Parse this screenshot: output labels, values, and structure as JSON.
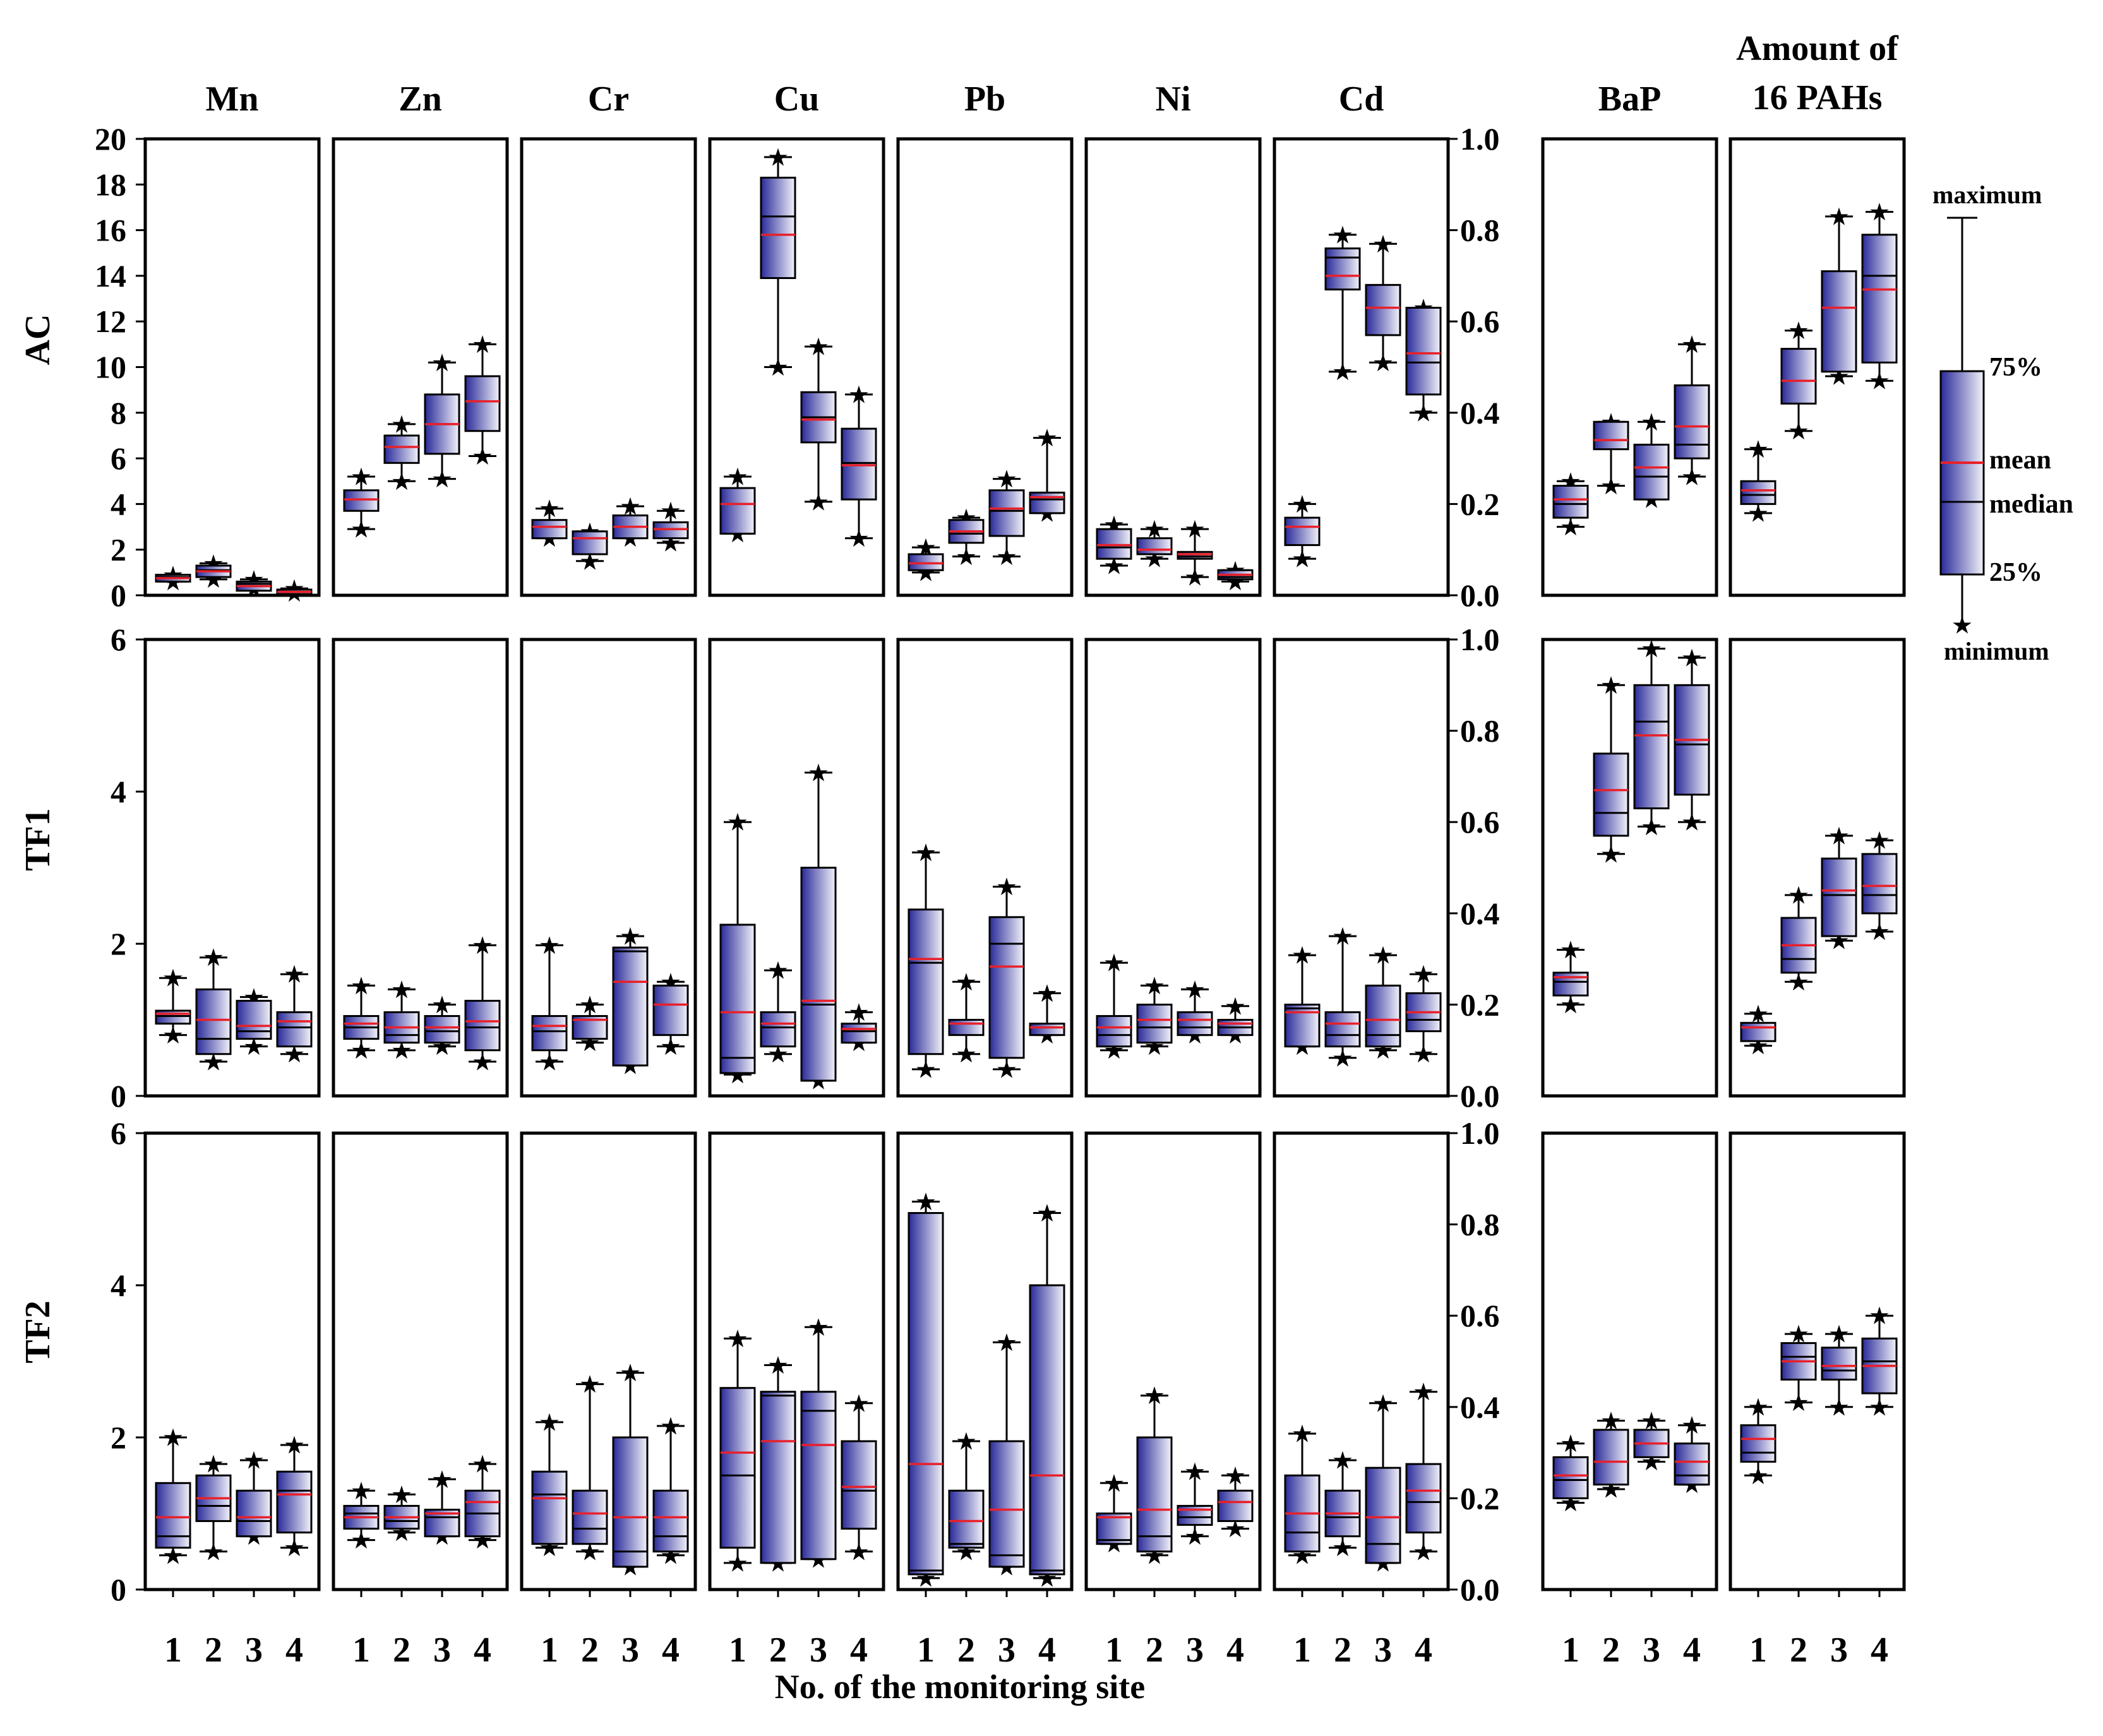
{
  "figure": {
    "x_title": "No. of the monitoring site",
    "row_labels": [
      "AC",
      "TF1",
      "TF2"
    ],
    "column_titles": [
      "Mn",
      "Zn",
      "Cr",
      "Cu",
      "Pb",
      "Ni",
      "Cd",
      "BaP",
      "Amount of\n16 PAHs"
    ],
    "left_ticks": [
      [
        "20",
        "18",
        "16",
        "14",
        "12",
        "10",
        "8",
        "6",
        "4",
        "2",
        "0"
      ],
      [
        "6",
        "4",
        "2",
        "0"
      ],
      [
        "6",
        "4",
        "2",
        "0"
      ]
    ],
    "right_ticks": [
      "1.0",
      "0.8",
      "0.6",
      "0.4",
      "0.2",
      "0.0"
    ],
    "site_labels": [
      "1",
      "2",
      "3",
      "4"
    ],
    "legend": {
      "maximum": "maximum",
      "p75": "75%",
      "mean": "mean",
      "median": "median",
      "p25": "25%",
      "minimum": "minimum"
    },
    "colors": {
      "box_dark": "#2a2a9a",
      "box_light": "#f2f2fa",
      "mean_line": "#e8202a",
      "outline": "#000000"
    }
  },
  "chart_data": {
    "type": "boxplot",
    "stat_order": [
      "min",
      "q25",
      "median",
      "q75",
      "max",
      "mean"
    ],
    "x_categories": [
      "1",
      "2",
      "3",
      "4"
    ],
    "panels": [
      {
        "row": "AC",
        "variable": "Mn",
        "ylim": [
          0,
          20
        ],
        "boxes": [
          [
            0.6,
            0.6,
            0.8,
            0.9,
            0.9,
            0.75
          ],
          [
            0.7,
            0.8,
            1.1,
            1.3,
            1.4,
            1.05
          ],
          [
            0.3,
            0.2,
            0.5,
            0.6,
            0.7,
            0.4
          ],
          [
            0.1,
            0.05,
            0.15,
            0.25,
            0.3,
            0.15
          ]
        ]
      },
      {
        "row": "AC",
        "variable": "Zn",
        "ylim": [
          0,
          20
        ],
        "boxes": [
          [
            2.9,
            3.7,
            4.2,
            4.6,
            5.2,
            4.2
          ],
          [
            5.0,
            5.8,
            6.5,
            7.0,
            7.5,
            6.5
          ],
          [
            5.1,
            6.2,
            7.5,
            8.8,
            10.2,
            7.5
          ],
          [
            6.1,
            7.2,
            8.5,
            9.6,
            11.0,
            8.5
          ]
        ]
      },
      {
        "row": "AC",
        "variable": "Cr",
        "ylim": [
          0,
          20
        ],
        "boxes": [
          [
            2.5,
            2.5,
            3.0,
            3.3,
            3.8,
            3.0
          ],
          [
            1.5,
            1.8,
            2.5,
            2.8,
            2.8,
            2.5
          ],
          [
            2.5,
            2.5,
            3.0,
            3.5,
            3.9,
            3.0
          ],
          [
            2.3,
            2.5,
            2.9,
            3.2,
            3.7,
            2.9
          ]
        ]
      },
      {
        "row": "AC",
        "variable": "Cu",
        "ylim": [
          0,
          20
        ],
        "boxes": [
          [
            2.7,
            2.7,
            4.0,
            4.7,
            5.2,
            4.0
          ],
          [
            10.0,
            13.9,
            16.6,
            18.3,
            19.2,
            15.8
          ],
          [
            4.1,
            6.7,
            7.8,
            8.9,
            10.9,
            7.7
          ],
          [
            2.5,
            4.2,
            5.8,
            7.3,
            8.8,
            5.7
          ]
        ]
      },
      {
        "row": "AC",
        "variable": "Pb",
        "ylim": [
          0,
          20
        ],
        "boxes": [
          [
            1.0,
            1.1,
            1.4,
            1.8,
            2.1,
            1.4
          ],
          [
            1.7,
            2.3,
            2.7,
            3.3,
            3.4,
            2.8
          ],
          [
            1.7,
            2.6,
            3.7,
            4.6,
            5.1,
            3.8
          ],
          [
            3.6,
            3.6,
            4.2,
            4.5,
            6.9,
            4.3
          ]
        ]
      },
      {
        "row": "AC",
        "variable": "Ni",
        "ylim": [
          0,
          20
        ],
        "boxes": [
          [
            1.3,
            1.6,
            2.1,
            2.9,
            3.1,
            2.2
          ],
          [
            1.6,
            1.8,
            2.0,
            2.5,
            2.9,
            2.0
          ],
          [
            0.8,
            1.6,
            1.7,
            1.9,
            2.9,
            1.8
          ],
          [
            0.6,
            0.7,
            0.8,
            1.1,
            1.1,
            0.9
          ]
        ]
      },
      {
        "row": "AC",
        "variable": "Cd",
        "ylim": [
          0,
          1
        ],
        "boxes": [
          [
            0.08,
            0.11,
            0.15,
            0.17,
            0.2,
            0.15
          ],
          [
            0.49,
            0.67,
            0.74,
            0.76,
            0.79,
            0.7
          ],
          [
            0.51,
            0.57,
            0.63,
            0.68,
            0.77,
            0.63
          ],
          [
            0.4,
            0.44,
            0.51,
            0.63,
            0.63,
            0.53
          ]
        ]
      },
      {
        "row": "AC",
        "variable": "BaP",
        "ylim": [
          0,
          1
        ],
        "boxes": [
          [
            0.15,
            0.17,
            0.2,
            0.24,
            0.25,
            0.21
          ],
          [
            0.24,
            0.32,
            0.34,
            0.38,
            0.38,
            0.34
          ],
          [
            0.21,
            0.21,
            0.26,
            0.33,
            0.38,
            0.28
          ],
          [
            0.26,
            0.3,
            0.33,
            0.46,
            0.55,
            0.37
          ]
        ]
      },
      {
        "row": "AC",
        "variable": "Amount of 16 PAHs",
        "ylim": [
          0,
          1
        ],
        "boxes": [
          [
            0.18,
            0.2,
            0.22,
            0.25,
            0.32,
            0.23
          ],
          [
            0.36,
            0.42,
            0.47,
            0.54,
            0.58,
            0.47
          ],
          [
            0.48,
            0.49,
            0.63,
            0.71,
            0.83,
            0.63
          ],
          [
            0.47,
            0.51,
            0.7,
            0.79,
            0.84,
            0.67
          ]
        ]
      },
      {
        "row": "TF1",
        "variable": "Mn",
        "ylim": [
          0,
          6
        ],
        "boxes": [
          [
            0.8,
            0.95,
            1.05,
            1.12,
            1.55,
            1.08
          ],
          [
            0.45,
            0.55,
            0.75,
            1.4,
            1.82,
            1.0
          ],
          [
            0.65,
            0.75,
            0.85,
            1.25,
            1.3,
            0.92
          ],
          [
            0.55,
            0.65,
            0.9,
            1.1,
            1.6,
            0.98
          ]
        ]
      },
      {
        "row": "TF1",
        "variable": "Zn",
        "ylim": [
          0,
          6
        ],
        "boxes": [
          [
            0.6,
            0.75,
            0.9,
            1.05,
            1.45,
            0.95
          ],
          [
            0.6,
            0.7,
            0.8,
            1.1,
            1.4,
            0.9
          ],
          [
            0.65,
            0.7,
            0.85,
            1.05,
            1.2,
            0.9
          ],
          [
            0.45,
            0.6,
            0.9,
            1.25,
            1.98,
            0.98
          ]
        ]
      },
      {
        "row": "TF1",
        "variable": "Cr",
        "ylim": [
          0,
          6
        ],
        "boxes": [
          [
            0.45,
            0.6,
            0.85,
            1.05,
            1.98,
            0.92
          ],
          [
            0.7,
            0.75,
            1.0,
            1.05,
            1.2,
            1.0
          ],
          [
            0.4,
            0.4,
            1.9,
            1.95,
            2.1,
            1.5
          ],
          [
            0.65,
            0.8,
            1.2,
            1.45,
            1.5,
            1.2
          ]
        ]
      },
      {
        "row": "TF1",
        "variable": "Cu",
        "ylim": [
          0,
          6
        ],
        "boxes": [
          [
            0.28,
            0.3,
            0.5,
            2.25,
            3.6,
            1.1
          ],
          [
            0.55,
            0.65,
            0.9,
            1.1,
            1.65,
            0.95
          ],
          [
            0.2,
            0.2,
            1.2,
            3.0,
            4.25,
            1.25
          ],
          [
            0.7,
            0.7,
            0.85,
            0.95,
            1.1,
            0.88
          ]
        ]
      },
      {
        "row": "TF1",
        "variable": "Pb",
        "ylim": [
          0,
          6
        ],
        "boxes": [
          [
            0.35,
            0.55,
            1.75,
            2.45,
            3.2,
            1.8
          ],
          [
            0.55,
            0.8,
            0.95,
            1.0,
            1.5,
            0.95
          ],
          [
            0.35,
            0.5,
            2.0,
            2.35,
            2.75,
            1.7
          ],
          [
            0.8,
            0.8,
            0.9,
            0.95,
            1.35,
            0.9
          ]
        ]
      },
      {
        "row": "TF1",
        "variable": "Ni",
        "ylim": [
          0,
          6
        ],
        "boxes": [
          [
            0.6,
            0.65,
            0.8,
            1.05,
            1.75,
            0.9
          ],
          [
            0.65,
            0.7,
            0.9,
            1.2,
            1.45,
            1.0
          ],
          [
            0.8,
            0.8,
            0.9,
            1.1,
            1.4,
            1.0
          ],
          [
            0.8,
            0.8,
            0.9,
            1.0,
            1.18,
            0.95
          ]
        ]
      },
      {
        "row": "TF1",
        "variable": "Cd",
        "ylim": [
          0,
          6
        ],
        "boxes": [
          [
            0.65,
            0.65,
            1.15,
            1.2,
            1.85,
            1.1
          ],
          [
            0.5,
            0.65,
            0.8,
            1.1,
            2.1,
            0.95
          ],
          [
            0.6,
            0.65,
            0.8,
            1.45,
            1.85,
            1.0
          ],
          [
            0.55,
            0.85,
            1.0,
            1.35,
            1.6,
            1.1
          ]
        ]
      },
      {
        "row": "TF1",
        "variable": "BaP",
        "ylim": [
          0,
          1
        ],
        "boxes": [
          [
            0.2,
            0.22,
            0.25,
            0.27,
            0.32,
            0.26
          ],
          [
            0.53,
            0.57,
            0.62,
            0.75,
            0.9,
            0.67
          ],
          [
            0.59,
            0.63,
            0.82,
            0.9,
            0.98,
            0.79
          ],
          [
            0.6,
            0.66,
            0.77,
            0.9,
            0.96,
            0.78
          ]
        ]
      },
      {
        "row": "TF1",
        "variable": "Amount of 16 PAHs",
        "ylim": [
          0,
          1
        ],
        "boxes": [
          [
            0.11,
            0.12,
            0.15,
            0.16,
            0.18,
            0.15
          ],
          [
            0.25,
            0.27,
            0.3,
            0.39,
            0.44,
            0.33
          ],
          [
            0.34,
            0.35,
            0.44,
            0.52,
            0.57,
            0.45
          ],
          [
            0.36,
            0.4,
            0.44,
            0.53,
            0.56,
            0.46
          ]
        ]
      },
      {
        "row": "TF2",
        "variable": "Mn",
        "ylim": [
          0,
          6
        ],
        "boxes": [
          [
            0.45,
            0.55,
            0.7,
            1.4,
            2.0,
            0.95
          ],
          [
            0.5,
            0.9,
            1.1,
            1.5,
            1.65,
            1.2
          ],
          [
            0.7,
            0.7,
            0.9,
            1.3,
            1.7,
            0.95
          ],
          [
            0.55,
            0.75,
            1.3,
            1.55,
            1.9,
            1.25
          ]
        ]
      },
      {
        "row": "TF2",
        "variable": "Zn",
        "ylim": [
          0,
          6
        ],
        "boxes": [
          [
            0.65,
            0.8,
            1.0,
            1.1,
            1.3,
            0.95
          ],
          [
            0.75,
            0.8,
            0.9,
            1.1,
            1.25,
            0.95
          ],
          [
            0.7,
            0.7,
            0.95,
            1.05,
            1.45,
            1.0
          ],
          [
            0.65,
            0.7,
            1.0,
            1.3,
            1.65,
            1.15
          ]
        ]
      },
      {
        "row": "TF2",
        "variable": "Cr",
        "ylim": [
          0,
          6
        ],
        "boxes": [
          [
            0.55,
            0.6,
            1.25,
            1.55,
            2.2,
            1.2
          ],
          [
            0.5,
            0.6,
            0.8,
            1.3,
            2.7,
            1.0
          ],
          [
            0.3,
            0.3,
            0.5,
            2.0,
            2.85,
            0.95
          ],
          [
            0.45,
            0.5,
            0.7,
            1.3,
            2.15,
            0.95
          ]
        ]
      },
      {
        "row": "TF2",
        "variable": "Cu",
        "ylim": [
          0,
          6
        ],
        "boxes": [
          [
            0.35,
            0.55,
            1.5,
            2.65,
            3.3,
            1.8
          ],
          [
            0.35,
            0.35,
            2.55,
            2.6,
            2.95,
            1.95
          ],
          [
            0.4,
            0.4,
            2.35,
            2.6,
            3.45,
            1.9
          ],
          [
            0.5,
            0.8,
            1.3,
            1.95,
            2.45,
            1.35
          ]
        ]
      },
      {
        "row": "TF2",
        "variable": "Pb",
        "ylim": [
          0,
          6
        ],
        "boxes": [
          [
            0.15,
            0.2,
            0.25,
            4.95,
            5.1,
            1.65
          ],
          [
            0.5,
            0.55,
            0.6,
            1.3,
            1.95,
            0.9
          ],
          [
            0.3,
            0.3,
            0.45,
            1.95,
            3.25,
            1.05
          ],
          [
            0.15,
            0.2,
            0.25,
            4.0,
            4.95,
            1.5
          ]
        ]
      },
      {
        "row": "TF2",
        "variable": "Ni",
        "ylim": [
          0,
          6
        ],
        "boxes": [
          [
            0.6,
            0.6,
            0.65,
            1.0,
            1.4,
            0.95
          ],
          [
            0.45,
            0.5,
            0.7,
            2.0,
            2.55,
            1.05
          ],
          [
            0.7,
            0.85,
            0.95,
            1.1,
            1.55,
            1.05
          ],
          [
            0.8,
            0.9,
            1.15,
            1.3,
            1.5,
            1.15
          ]
        ]
      },
      {
        "row": "TF2",
        "variable": "Cd",
        "ylim": [
          0,
          6
        ],
        "boxes": [
          [
            0.45,
            0.5,
            0.75,
            1.5,
            2.05,
            1.0
          ],
          [
            0.55,
            0.7,
            0.95,
            1.3,
            1.7,
            1.0
          ],
          [
            0.35,
            0.35,
            0.6,
            1.6,
            2.45,
            0.95
          ],
          [
            0.5,
            0.75,
            1.15,
            1.65,
            2.6,
            1.3
          ]
        ]
      },
      {
        "row": "TF2",
        "variable": "BaP",
        "ylim": [
          0,
          1
        ],
        "boxes": [
          [
            0.19,
            0.2,
            0.24,
            0.29,
            0.32,
            0.25
          ],
          [
            0.22,
            0.23,
            0.28,
            0.35,
            0.37,
            0.28
          ],
          [
            0.28,
            0.29,
            0.32,
            0.35,
            0.37,
            0.32
          ],
          [
            0.23,
            0.23,
            0.25,
            0.32,
            0.36,
            0.28
          ]
        ]
      },
      {
        "row": "TF2",
        "variable": "Amount of 16 PAHs",
        "ylim": [
          0,
          1
        ],
        "boxes": [
          [
            0.25,
            0.28,
            0.3,
            0.36,
            0.4,
            0.33
          ],
          [
            0.41,
            0.46,
            0.51,
            0.54,
            0.56,
            0.5
          ],
          [
            0.4,
            0.46,
            0.48,
            0.53,
            0.56,
            0.49
          ],
          [
            0.4,
            0.43,
            0.5,
            0.55,
            0.6,
            0.49
          ]
        ]
      }
    ]
  }
}
